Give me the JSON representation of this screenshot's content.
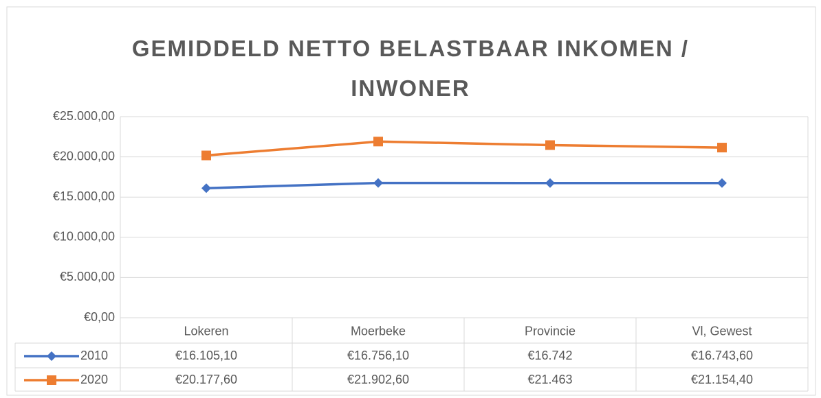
{
  "chart_data": {
    "type": "line",
    "title": "GEMIDDELD NETTO BELASTBAAR INKOMEN / INWONER",
    "categories": [
      "Lokeren",
      "Moerbeke",
      "Provincie",
      "Vl, Gewest"
    ],
    "series": [
      {
        "name": "2010",
        "color": "#4472c4",
        "marker": "diamond",
        "values": [
          16105.1,
          16756.1,
          16742,
          16743.6
        ],
        "value_labels": [
          "€16.105,10",
          "€16.756,10",
          "€16.742",
          "€16.743,60"
        ]
      },
      {
        "name": "2020",
        "color": "#ed7d31",
        "marker": "square",
        "values": [
          20177.6,
          21902.6,
          21463,
          21154.4
        ],
        "value_labels": [
          "€20.177,60",
          "€21.902,60",
          "€21.463",
          "€21.154,40"
        ]
      }
    ],
    "ylim": [
      0,
      25000
    ],
    "yticks": [
      {
        "value": 0,
        "label": "€0,00"
      },
      {
        "value": 5000,
        "label": "€5.000,00"
      },
      {
        "value": 10000,
        "label": "€10.000,00"
      },
      {
        "value": 15000,
        "label": "€15.000,00"
      },
      {
        "value": 20000,
        "label": "€20.000,00"
      },
      {
        "value": 25000,
        "label": "€25.000,00"
      }
    ],
    "grid": true
  }
}
